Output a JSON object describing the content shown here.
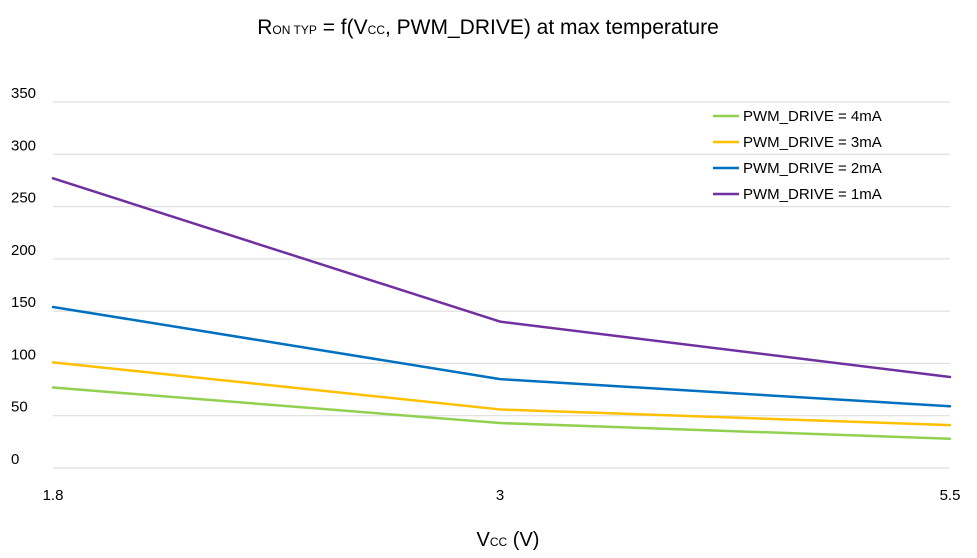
{
  "chart_data": {
    "type": "line",
    "title": {
      "r": "R",
      "r_sub": "ON TYP",
      "mid": " = f(V",
      "v_sub": "CC",
      "end": ", PWM_DRIVE) at max temperature"
    },
    "xlabel": {
      "v": "V",
      "v_sub": "CC",
      "end": " (V)"
    },
    "ylabel": "",
    "categories": [
      "1.8",
      "3",
      "5.5"
    ],
    "yticks": [
      "0",
      "50",
      "100",
      "150",
      "200",
      "250",
      "300",
      "350"
    ],
    "ylim": [
      0,
      350
    ],
    "grid": true,
    "legend_position": "top-right",
    "series": [
      {
        "name": "PWM_DRIVE = 4mA",
        "color": "#92d050",
        "values": [
          77,
          43,
          28
        ]
      },
      {
        "name": "PWM_DRIVE = 3mA",
        "color": "#ffc000",
        "values": [
          101,
          56,
          41
        ]
      },
      {
        "name": "PWM_DRIVE = 2mA",
        "color": "#0070c0",
        "values": [
          154,
          85,
          59
        ]
      },
      {
        "name": "PWM_DRIVE = 1mA",
        "color": "#7030a0",
        "values": [
          277,
          140,
          87
        ]
      }
    ]
  }
}
